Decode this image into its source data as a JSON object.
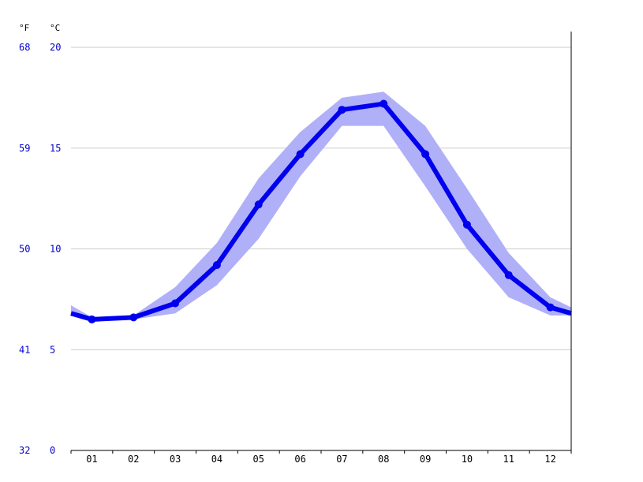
{
  "chart_data": {
    "type": "line",
    "categories": [
      "01",
      "02",
      "03",
      "04",
      "05",
      "06",
      "07",
      "08",
      "09",
      "10",
      "11",
      "12"
    ],
    "series": [
      {
        "values": [
          6.5,
          6.6,
          7.3,
          9.2,
          12.2,
          14.7,
          16.9,
          17.2,
          14.7,
          11.2,
          8.7,
          7.1
        ],
        "lower": [
          6.5,
          6.5,
          6.8,
          8.2,
          10.5,
          13.6,
          16.1,
          16.1,
          13.1,
          10.0,
          7.6,
          6.7
        ],
        "upper": [
          6.6,
          6.7,
          8.1,
          10.3,
          13.5,
          15.8,
          17.5,
          17.8,
          16.1,
          13.0,
          9.8,
          7.6
        ]
      }
    ],
    "edge_values": {
      "start": 6.8,
      "end": 6.8,
      "start_lower": 6.7,
      "start_upper": 7.2,
      "end_lower": 6.7,
      "end_upper": 7.1
    },
    "ylim": [
      0,
      20
    ],
    "y_ticks": [
      0,
      5,
      10,
      15,
      20
    ],
    "y_ticks_f": [
      "32",
      "41",
      "50",
      "59",
      "68"
    ],
    "y_unit_left": "°F",
    "y_unit_right": "°C",
    "grid": true,
    "colors": {
      "line": "#0000ee",
      "band": "#b0b0f8",
      "grid": "#cccccc",
      "axis": "#000000",
      "tick_label": "#0000cc"
    }
  }
}
